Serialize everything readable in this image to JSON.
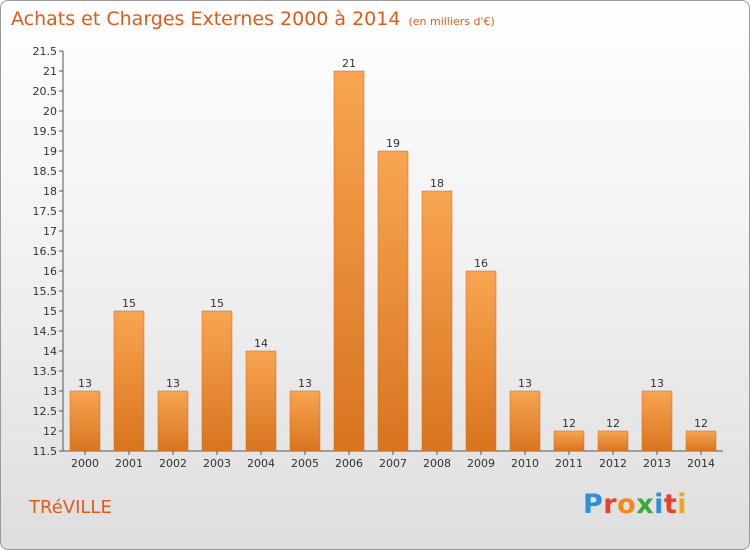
{
  "header": {
    "title": "Achats et Charges Externes 2000 à 2014",
    "subtitle": "(en milliers d'€)"
  },
  "commune": "TRéVILLE",
  "logo": {
    "text": "Proxiti",
    "letter_colors": [
      "#2e8fd6",
      "#e8402a",
      "#f08a1a",
      "#3aa83a",
      "#2e8fd6",
      "#e8402a",
      "#f0a81a"
    ]
  },
  "colors": {
    "bar_light": "#f8a552",
    "bar_dark": "#d9741f",
    "title": "#e05a18"
  },
  "chart_data": {
    "type": "bar",
    "title": "Achats et Charges Externes 2000 à 2014",
    "subtitle": "(en milliers d'€)",
    "categories": [
      "2000",
      "2001",
      "2002",
      "2003",
      "2004",
      "2005",
      "2006",
      "2007",
      "2008",
      "2009",
      "2010",
      "2011",
      "2012",
      "2013",
      "2014"
    ],
    "values": [
      13,
      15,
      13,
      15,
      14,
      13,
      21,
      19,
      18,
      16,
      13,
      12,
      12,
      13,
      12
    ],
    "ylim": [
      11.5,
      21.5
    ],
    "yticks": [
      "11.5",
      "12",
      "12.5",
      "13",
      "13.5",
      "14",
      "14.5",
      "15",
      "15.5",
      "16",
      "16.5",
      "17",
      "17.5",
      "18",
      "18.5",
      "19",
      "19.5",
      "20",
      "20.5",
      "21",
      "21.5"
    ],
    "xlabel": "",
    "ylabel": "",
    "grid": false
  }
}
